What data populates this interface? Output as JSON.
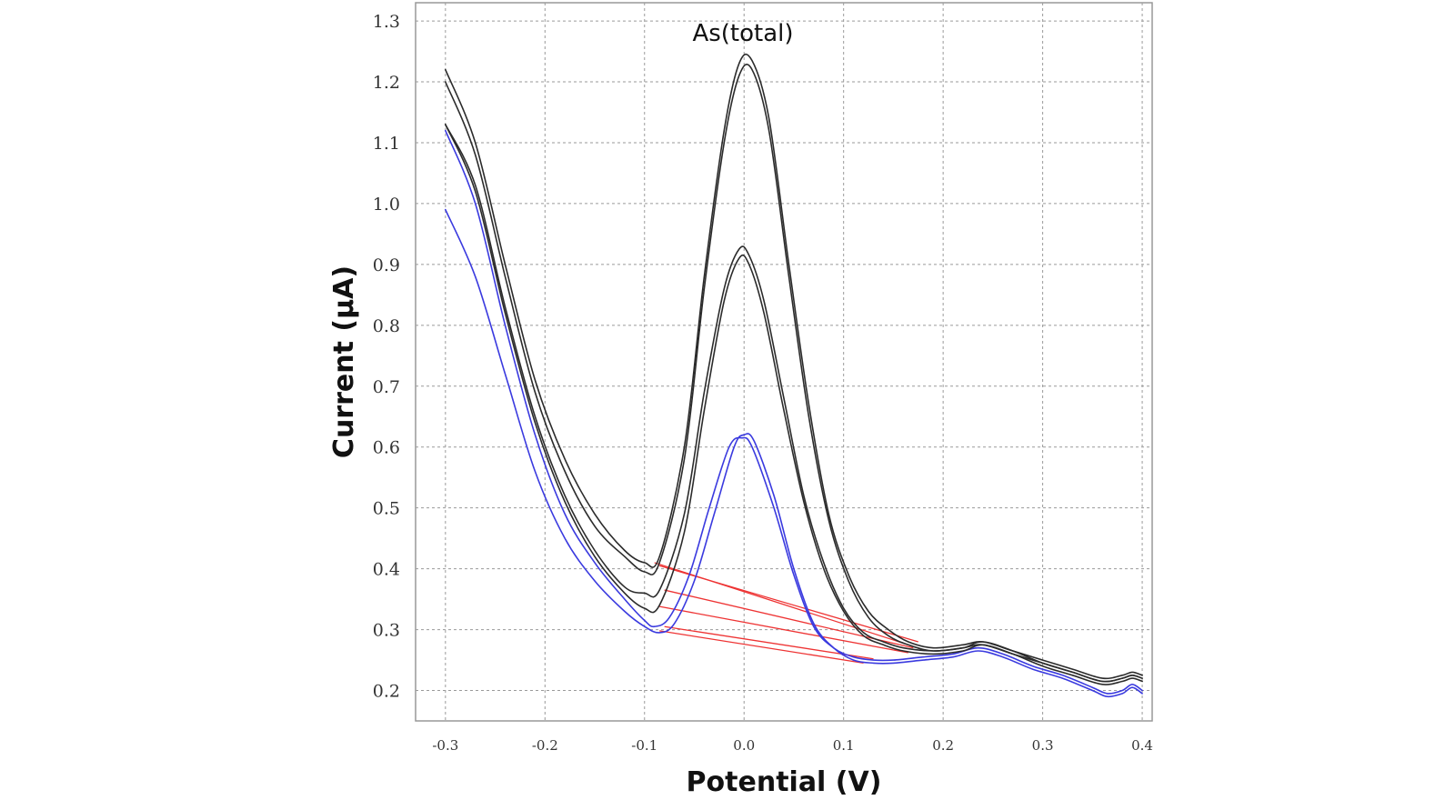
{
  "chart_data": {
    "type": "line",
    "title": "As(total)",
    "xlabel": "Potential (V)",
    "ylabel": "Current (μA)",
    "xlim": [
      -0.33,
      0.41
    ],
    "ylim": [
      0.15,
      1.33
    ],
    "grid": true,
    "x_ticks": [
      -0.3,
      -0.2,
      -0.1,
      0.0,
      0.1,
      0.2,
      0.3,
      0.4
    ],
    "x_tick_labels": [
      "-0.3",
      "-0.2",
      "-0.1",
      "0.0",
      "0.1",
      "0.2",
      "0.3",
      "0.4"
    ],
    "y_ticks": [
      0.2,
      0.3,
      0.4,
      0.5,
      0.6,
      0.7,
      0.8,
      0.9,
      1.0,
      1.1,
      1.2,
      1.3
    ],
    "y_tick_labels": [
      "0.2",
      "0.3",
      "0.4",
      "0.5",
      "0.6",
      "0.7",
      "0.8",
      "0.9",
      "1.0",
      "1.1",
      "1.2",
      "1.3"
    ],
    "colors": {
      "black_series": "#2b2b2b",
      "blue_series": "#3a3adf",
      "baseline": "#ee3333",
      "grid": "#9a9a9a"
    },
    "series": [
      {
        "color": "#3a3adf",
        "x": [
          -0.3,
          -0.27,
          -0.24,
          -0.21,
          -0.18,
          -0.15,
          -0.12,
          -0.1,
          -0.085,
          -0.07,
          -0.05,
          -0.03,
          -0.01,
          0.0,
          0.01,
          0.03,
          0.05,
          0.07,
          0.09,
          0.11,
          0.13,
          0.15,
          0.18,
          0.21,
          0.235,
          0.26,
          0.29,
          0.32,
          0.35,
          0.365,
          0.38,
          0.39,
          0.4
        ],
        "y": [
          0.99,
          0.88,
          0.72,
          0.56,
          0.45,
          0.38,
          0.33,
          0.305,
          0.295,
          0.31,
          0.38,
          0.49,
          0.6,
          0.62,
          0.61,
          0.52,
          0.4,
          0.31,
          0.27,
          0.25,
          0.245,
          0.245,
          0.25,
          0.255,
          0.265,
          0.255,
          0.235,
          0.22,
          0.2,
          0.19,
          0.195,
          0.205,
          0.195
        ]
      },
      {
        "color": "#3a3adf",
        "x": [
          -0.3,
          -0.27,
          -0.24,
          -0.21,
          -0.18,
          -0.15,
          -0.12,
          -0.1,
          -0.09,
          -0.075,
          -0.055,
          -0.035,
          -0.015,
          -0.002,
          0.008,
          0.03,
          0.05,
          0.07,
          0.09,
          0.11,
          0.13,
          0.15,
          0.18,
          0.21,
          0.235,
          0.26,
          0.29,
          0.32,
          0.35,
          0.365,
          0.38,
          0.39,
          0.4
        ],
        "y": [
          1.12,
          1.0,
          0.8,
          0.62,
          0.49,
          0.41,
          0.35,
          0.315,
          0.305,
          0.32,
          0.39,
          0.5,
          0.6,
          0.615,
          0.6,
          0.5,
          0.39,
          0.305,
          0.27,
          0.255,
          0.25,
          0.25,
          0.255,
          0.26,
          0.27,
          0.26,
          0.24,
          0.225,
          0.205,
          0.195,
          0.2,
          0.21,
          0.2
        ]
      },
      {
        "color": "#2b2b2b",
        "x": [
          -0.3,
          -0.27,
          -0.24,
          -0.21,
          -0.18,
          -0.15,
          -0.12,
          -0.1,
          -0.085,
          -0.06,
          -0.04,
          -0.02,
          -0.005,
          0.005,
          0.02,
          0.04,
          0.06,
          0.08,
          0.1,
          0.12,
          0.14,
          0.16,
          0.19,
          0.22,
          0.24,
          0.27,
          0.3,
          0.33,
          0.36,
          0.38,
          0.39,
          0.4
        ],
        "y": [
          1.13,
          1.02,
          0.82,
          0.64,
          0.51,
          0.42,
          0.36,
          0.335,
          0.34,
          0.46,
          0.66,
          0.84,
          0.91,
          0.9,
          0.82,
          0.66,
          0.51,
          0.4,
          0.33,
          0.29,
          0.275,
          0.265,
          0.26,
          0.265,
          0.275,
          0.26,
          0.24,
          0.225,
          0.21,
          0.215,
          0.22,
          0.215
        ]
      },
      {
        "color": "#2b2b2b",
        "x": [
          -0.3,
          -0.27,
          -0.24,
          -0.21,
          -0.18,
          -0.15,
          -0.12,
          -0.1,
          -0.085,
          -0.06,
          -0.04,
          -0.02,
          -0.005,
          0.005,
          0.02,
          0.04,
          0.06,
          0.08,
          0.1,
          0.12,
          0.14,
          0.16,
          0.19,
          0.22,
          0.24,
          0.27,
          0.3,
          0.33,
          0.36,
          0.38,
          0.39,
          0.4
        ],
        "y": [
          1.13,
          1.03,
          0.83,
          0.65,
          0.52,
          0.43,
          0.37,
          0.36,
          0.365,
          0.49,
          0.69,
          0.86,
          0.925,
          0.915,
          0.84,
          0.68,
          0.52,
          0.41,
          0.335,
          0.295,
          0.28,
          0.27,
          0.265,
          0.27,
          0.28,
          0.265,
          0.245,
          0.23,
          0.215,
          0.22,
          0.225,
          0.22
        ]
      },
      {
        "color": "#2b2b2b",
        "x": [
          -0.3,
          -0.27,
          -0.24,
          -0.21,
          -0.18,
          -0.15,
          -0.12,
          -0.1,
          -0.085,
          -0.06,
          -0.04,
          -0.02,
          -0.005,
          0.008,
          0.025,
          0.045,
          0.065,
          0.085,
          0.105,
          0.125,
          0.145,
          0.165,
          0.19,
          0.22,
          0.24,
          0.27,
          0.3,
          0.33,
          0.36,
          0.38,
          0.39,
          0.4
        ],
        "y": [
          1.2,
          1.08,
          0.88,
          0.69,
          0.56,
          0.47,
          0.42,
          0.395,
          0.41,
          0.58,
          0.86,
          1.1,
          1.21,
          1.22,
          1.12,
          0.88,
          0.65,
          0.48,
          0.38,
          0.32,
          0.29,
          0.275,
          0.265,
          0.27,
          0.275,
          0.26,
          0.245,
          0.23,
          0.215,
          0.22,
          0.225,
          0.22
        ]
      },
      {
        "color": "#2b2b2b",
        "x": [
          -0.3,
          -0.27,
          -0.24,
          -0.21,
          -0.18,
          -0.15,
          -0.12,
          -0.1,
          -0.085,
          -0.06,
          -0.04,
          -0.02,
          -0.005,
          0.008,
          0.025,
          0.045,
          0.065,
          0.085,
          0.105,
          0.125,
          0.145,
          0.165,
          0.19,
          0.22,
          0.24,
          0.27,
          0.3,
          0.33,
          0.36,
          0.38,
          0.39,
          0.4
        ],
        "y": [
          1.22,
          1.1,
          0.9,
          0.71,
          0.58,
          0.49,
          0.43,
          0.41,
          0.42,
          0.6,
          0.88,
          1.12,
          1.23,
          1.235,
          1.14,
          0.9,
          0.67,
          0.49,
          0.39,
          0.33,
          0.3,
          0.28,
          0.27,
          0.275,
          0.28,
          0.265,
          0.25,
          0.235,
          0.22,
          0.225,
          0.23,
          0.225
        ]
      }
    ],
    "baselines": [
      {
        "x": [
          -0.085,
          0.12
        ],
        "y": [
          0.298,
          0.245
        ]
      },
      {
        "x": [
          -0.08,
          0.13
        ],
        "y": [
          0.305,
          0.252
        ]
      },
      {
        "x": [
          -0.085,
          0.165
        ],
        "y": [
          0.338,
          0.262
        ]
      },
      {
        "x": [
          -0.08,
          0.17
        ],
        "y": [
          0.365,
          0.27
        ]
      },
      {
        "x": [
          -0.09,
          0.165
        ],
        "y": [
          0.41,
          0.275
        ]
      },
      {
        "x": [
          -0.085,
          0.175
        ],
        "y": [
          0.405,
          0.28
        ]
      }
    ]
  }
}
